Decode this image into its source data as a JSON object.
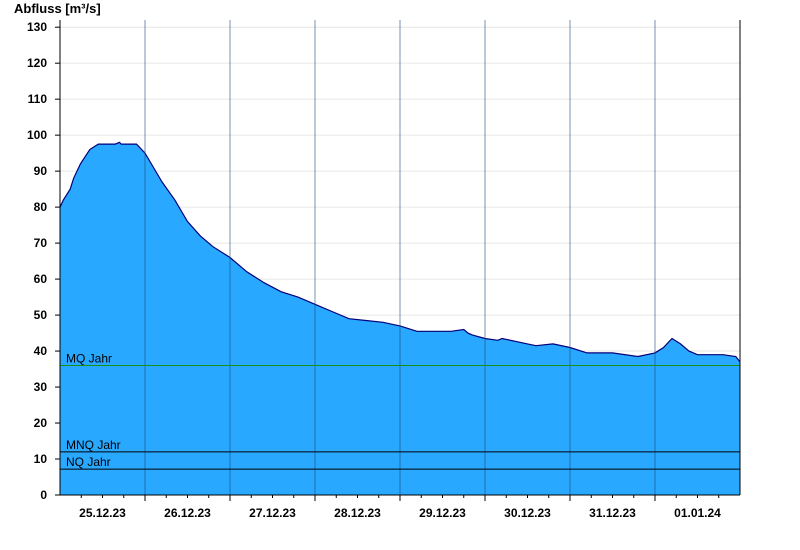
{
  "chart_data": {
    "type": "area",
    "ylabel": "Abfluss [m³/s]",
    "ylim": [
      0,
      132
    ],
    "yticks": [
      0,
      10,
      20,
      30,
      40,
      50,
      60,
      70,
      80,
      90,
      100,
      110,
      120,
      130
    ],
    "xlim": [
      0,
      8
    ],
    "x_unit": "days since 24.12.23 12:00",
    "xtick_labels": [
      "25.12.23",
      "26.12.23",
      "27.12.23",
      "28.12.23",
      "29.12.23",
      "30.12.23",
      "31.12.23",
      "01.01.24"
    ],
    "grid": true,
    "series": [
      {
        "name": "Abfluss",
        "color": "#29a8ff",
        "x": [
          0,
          0.04,
          0.12,
          0.16,
          0.24,
          0.35,
          0.45,
          0.5,
          0.65,
          0.7,
          0.72,
          0.9,
          1.0,
          1.1,
          1.2,
          1.35,
          1.5,
          1.65,
          1.8,
          2.0,
          2.2,
          2.4,
          2.6,
          2.8,
          3.0,
          3.2,
          3.4,
          3.6,
          3.8,
          4.0,
          4.2,
          4.4,
          4.6,
          4.75,
          4.8,
          4.85,
          5.0,
          5.15,
          5.2,
          5.5,
          5.6,
          5.8,
          6.0,
          6.2,
          6.4,
          6.5,
          6.8,
          7.0,
          7.1,
          7.2,
          7.3,
          7.4,
          7.5,
          7.6,
          7.8,
          7.95,
          8.0
        ],
        "values": [
          80,
          82,
          85,
          88,
          92,
          96,
          97.5,
          97.5,
          97.5,
          98,
          97.5,
          97.5,
          95,
          91,
          87,
          82,
          76,
          72,
          69,
          66,
          62,
          59,
          56.5,
          55,
          53,
          51,
          49,
          48.5,
          48,
          47,
          45.5,
          45.5,
          45.5,
          46,
          45,
          44.5,
          43.5,
          43,
          43.5,
          42,
          41.5,
          42,
          41,
          39.5,
          39.5,
          39.5,
          38.5,
          39.5,
          41,
          43.5,
          42,
          40,
          39,
          39,
          39,
          38.5,
          37
        ]
      }
    ],
    "reference_lines": [
      {
        "label": "MQ Jahr",
        "value": 36,
        "color": "#1a8f1a"
      },
      {
        "label": "MNQ Jahr",
        "value": 12,
        "color": "#000000"
      },
      {
        "label": "NQ Jahr",
        "value": 7.2,
        "color": "#000000"
      }
    ]
  }
}
